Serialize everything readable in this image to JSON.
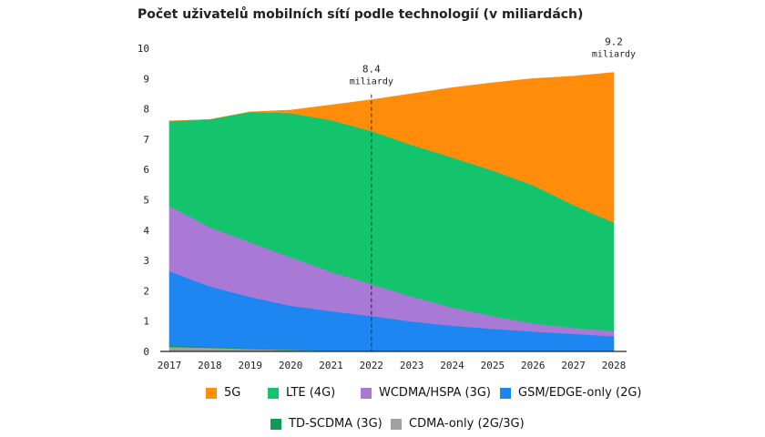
{
  "title": "Počet uživatelů mobilních sítí podle technologií (v miliardách)",
  "chart_data": {
    "type": "area",
    "stacked": true,
    "title": "Počet uživatelů mobilních sítí podle technologií (v miliardách)",
    "xlabel": "",
    "ylabel": "",
    "categories": [
      "2017",
      "2018",
      "2019",
      "2020",
      "2021",
      "2022",
      "2023",
      "2024",
      "2025",
      "2026",
      "2027",
      "2028"
    ],
    "ylim": [
      0,
      10
    ],
    "yticks": [
      "0",
      "1",
      "2",
      "3",
      "4",
      "5",
      "6",
      "7",
      "8",
      "9",
      "10"
    ],
    "series": [
      {
        "name": "CDMA-only (2G/3G)",
        "color": "#a0a0a0",
        "values": [
          0.15,
          0.12,
          0.08,
          0.05,
          0.03,
          0.02,
          0.01,
          0.0,
          0.0,
          0.0,
          0.0,
          0.0
        ]
      },
      {
        "name": "TD-SCDMA (3G)",
        "color": "#0f9a55",
        "values": [
          0.05,
          0.03,
          0.02,
          0.01,
          0.0,
          0.0,
          0.0,
          0.0,
          0.0,
          0.0,
          0.0,
          0.0
        ]
      },
      {
        "name": "GSM/EDGE-only (2G)",
        "color": "#1e86f0",
        "values": [
          2.45,
          2.0,
          1.7,
          1.45,
          1.3,
          1.15,
          0.98,
          0.85,
          0.75,
          0.66,
          0.58,
          0.5
        ]
      },
      {
        "name": "WCDMA/HSPA (3G)",
        "color": "#a87ad6",
        "values": [
          2.15,
          1.95,
          1.8,
          1.6,
          1.3,
          1.05,
          0.82,
          0.6,
          0.42,
          0.27,
          0.2,
          0.18
        ]
      },
      {
        "name": "LTE (4G)",
        "color": "#13c46d",
        "values": [
          2.8,
          3.55,
          4.3,
          4.75,
          5.0,
          5.05,
          5.0,
          4.95,
          4.8,
          4.55,
          4.05,
          3.57
        ]
      },
      {
        "name": "5G",
        "color": "#ff8c0a",
        "values": [
          0.0,
          0.0,
          0.0,
          0.1,
          0.5,
          1.03,
          1.69,
          2.3,
          2.89,
          3.52,
          4.25,
          4.95
        ]
      }
    ],
    "annotations": [
      {
        "year": "2022",
        "label": "8.4",
        "sublabel": "miliardy",
        "dashed_line": true
      },
      {
        "year": "2028",
        "label": "9.2",
        "sublabel": "miliardy",
        "dashed_line": false
      }
    ],
    "legend": [
      [
        "5G",
        "LTE (4G)",
        "WCDMA/HSPA (3G)",
        "GSM/EDGE-only (2G)"
      ],
      [
        "TD-SCDMA (3G)",
        "CDMA-only (2G/3G)"
      ]
    ],
    "legend_position": "bottom"
  }
}
